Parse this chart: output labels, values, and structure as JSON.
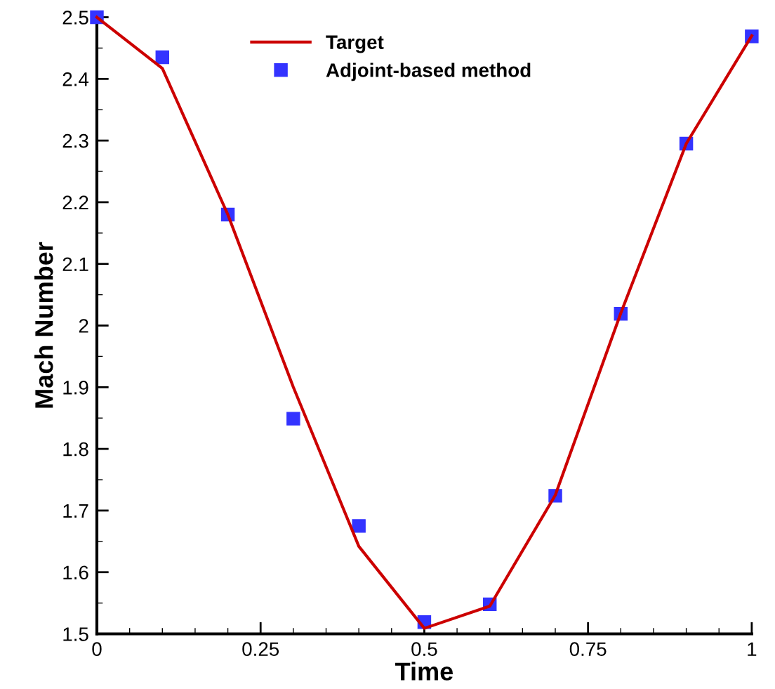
{
  "chart_data": {
    "type": "line",
    "xlabel": "Time",
    "ylabel": "Mach Number",
    "xlim": [
      0,
      1
    ],
    "ylim": [
      1.5,
      2.5
    ],
    "xticks": [
      0,
      0.25,
      0.5,
      0.75,
      1
    ],
    "yticks": [
      {
        "value": 1.5,
        "label": "1.5"
      },
      {
        "value": 1.6,
        "label": "1.6"
      },
      {
        "value": 1.7,
        "label": "1.7"
      },
      {
        "value": 1.8,
        "label": "1.8"
      },
      {
        "value": 1.9,
        "label": "1.9"
      },
      {
        "value": 2.0,
        "label": "2"
      },
      {
        "value": 2.1,
        "label": "2.1"
      },
      {
        "value": 2.2,
        "label": "2.2"
      },
      {
        "value": 2.3,
        "label": "2.3"
      },
      {
        "value": 2.4,
        "label": "2.4"
      },
      {
        "value": 2.5,
        "label": "2.5"
      }
    ],
    "grid": false,
    "legend": "top",
    "series": [
      {
        "name": "Target",
        "color": "#cc0000",
        "marker": "none",
        "line_style": "solid",
        "x": [
          0,
          0.1,
          0.2,
          0.3,
          0.4,
          0.5,
          0.6,
          0.7,
          0.8,
          0.9,
          1.0
        ],
        "values": [
          2.5,
          2.417,
          2.18,
          1.9,
          1.642,
          1.509,
          1.545,
          1.725,
          2.02,
          2.295,
          2.47
        ]
      },
      {
        "name": "Adjoint-based method",
        "type": "scatter",
        "color": "#3333ff",
        "marker": "square",
        "x": [
          0,
          0.1,
          0.2,
          0.3,
          0.4,
          0.5,
          0.6,
          0.7,
          0.8,
          0.9,
          1.0
        ],
        "values": [
          2.5,
          2.435,
          2.18,
          1.849,
          1.675,
          1.519,
          1.548,
          1.724,
          2.019,
          2.295,
          2.469
        ]
      }
    ]
  }
}
